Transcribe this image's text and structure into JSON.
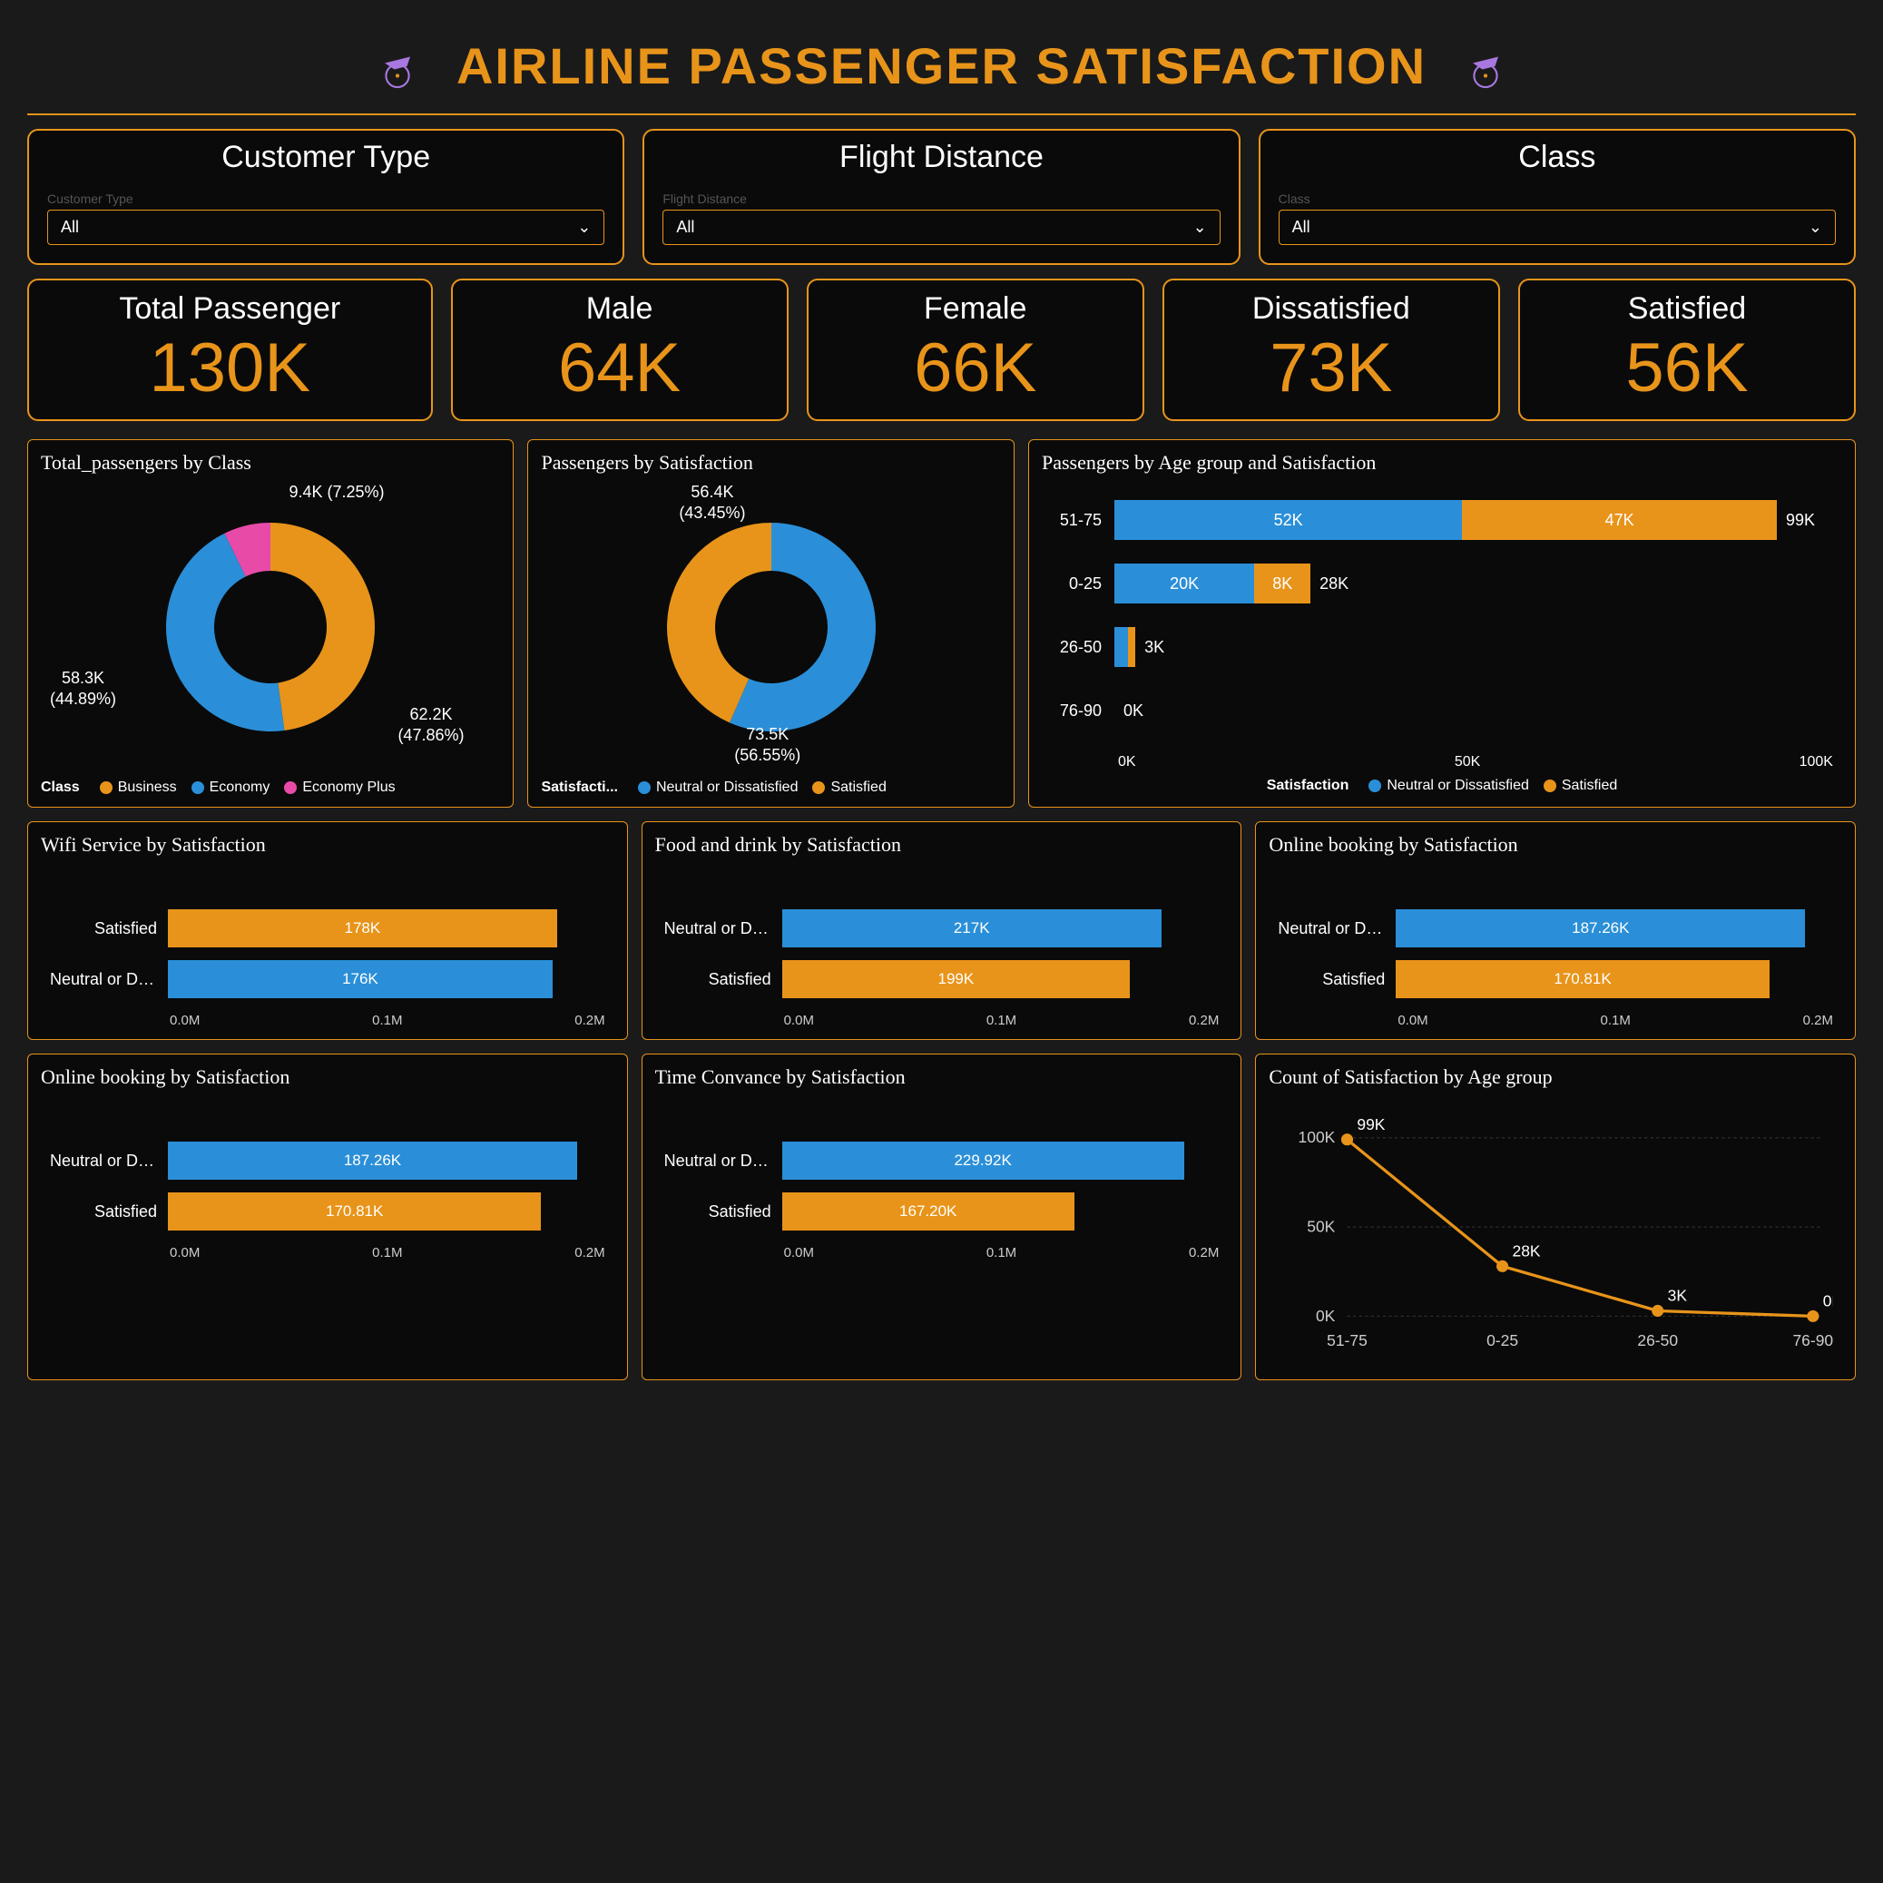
{
  "colors": {
    "accent": "#e8941a",
    "blue": "#2a8fd8",
    "orange": "#e8941a",
    "pink": "#e84aa8",
    "bg": "#0a0a0a",
    "text": "#ffffff",
    "grid": "#444444"
  },
  "header": {
    "title": "AIRLINE PASSENGER SATISFACTION"
  },
  "filters": [
    {
      "title": "Customer Type",
      "sublabel": "Customer Type",
      "value": "All"
    },
    {
      "title": "Flight Distance",
      "sublabel": "Flight Distance",
      "value": "All"
    },
    {
      "title": "Class",
      "sublabel": "Class",
      "value": "All"
    }
  ],
  "kpis": [
    {
      "label": "Total Passenger",
      "value": "130K"
    },
    {
      "label": "Male",
      "value": "64K"
    },
    {
      "label": "Female",
      "value": "66K"
    },
    {
      "label": "Dissatisfied",
      "value": "73K"
    },
    {
      "label": "Satisfied",
      "value": "56K"
    }
  ],
  "donut_class": {
    "title": "Total_passengers by Class",
    "slices": [
      {
        "name": "Business",
        "value": 62.2,
        "pct": 47.86,
        "color": "#e8941a",
        "label": "62.2K\n(47.86%)"
      },
      {
        "name": "Economy",
        "value": 58.3,
        "pct": 44.89,
        "color": "#2a8fd8",
        "label": "58.3K\n(44.89%)"
      },
      {
        "name": "Economy Plus",
        "value": 9.4,
        "pct": 7.25,
        "color": "#e84aa8",
        "label": "9.4K (7.25%)"
      }
    ],
    "legend_title": "Class",
    "legend": [
      "Business",
      "Economy",
      "Economy Plus"
    ]
  },
  "donut_sat": {
    "title": "Passengers by Satisfaction",
    "slices": [
      {
        "name": "Neutral or Dissatisfied",
        "value": 73.5,
        "pct": 56.55,
        "color": "#2a8fd8",
        "label": "73.5K\n(56.55%)"
      },
      {
        "name": "Satisfied",
        "value": 56.4,
        "pct": 43.45,
        "color": "#e8941a",
        "label": "56.4K\n(43.45%)"
      }
    ],
    "legend_title": "Satisfacti...",
    "legend": [
      "Neutral or Dissatisfied",
      "Satisfied"
    ]
  },
  "stacked": {
    "title": "Passengers by Age group and Satisfaction",
    "max": 100,
    "rows": [
      {
        "label": "51-75",
        "a": 52,
        "a_label": "52K",
        "b": 47,
        "b_label": "47K",
        "total": "99K"
      },
      {
        "label": "0-25",
        "a": 20,
        "a_label": "20K",
        "b": 8,
        "b_label": "8K",
        "total": "28K"
      },
      {
        "label": "26-50",
        "a": 2,
        "a_label": "",
        "b": 1,
        "b_label": "",
        "total": "3K"
      },
      {
        "label": "76-90",
        "a": 0,
        "a_label": "",
        "b": 0,
        "b_label": "",
        "total": "0K"
      }
    ],
    "axis": [
      "0K",
      "50K",
      "100K"
    ],
    "legend_title": "Satisfaction",
    "legend": [
      "Neutral or Dissatisfied",
      "Satisfied"
    ]
  },
  "bar_charts_row2": [
    {
      "title": "Wifi Service by Satisfaction",
      "max": 200,
      "bars": [
        {
          "label": "Satisfied",
          "value": 178,
          "text": "178K",
          "color": "#e8941a"
        },
        {
          "label": "Neutral or Dis...",
          "value": 176,
          "text": "176K",
          "color": "#2a8fd8"
        }
      ],
      "axis": [
        "0.0M",
        "0.1M",
        "0.2M"
      ]
    },
    {
      "title": "Food and drink by Satisfaction",
      "max": 250,
      "bars": [
        {
          "label": "Neutral or Dis...",
          "value": 217,
          "text": "217K",
          "color": "#2a8fd8"
        },
        {
          "label": "Satisfied",
          "value": 199,
          "text": "199K",
          "color": "#e8941a"
        }
      ],
      "axis": [
        "0.0M",
        "0.1M",
        "0.2M"
      ]
    },
    {
      "title": "Online booking by Satisfaction",
      "max": 200,
      "bars": [
        {
          "label": "Neutral or Dis...",
          "value": 187.26,
          "text": "187.26K",
          "color": "#2a8fd8"
        },
        {
          "label": "Satisfied",
          "value": 170.81,
          "text": "170.81K",
          "color": "#e8941a"
        }
      ],
      "axis": [
        "0.0M",
        "0.1M",
        "0.2M"
      ]
    }
  ],
  "bar_charts_row3": [
    {
      "title": "Online booking by Satisfaction",
      "max": 200,
      "bars": [
        {
          "label": "Neutral or Dis...",
          "value": 187.26,
          "text": "187.26K",
          "color": "#2a8fd8"
        },
        {
          "label": "Satisfied",
          "value": 170.81,
          "text": "170.81K",
          "color": "#e8941a"
        }
      ],
      "axis": [
        "0.0M",
        "0.1M",
        "0.2M"
      ]
    },
    {
      "title": "Time Convance by Satisfaction",
      "max": 250,
      "bars": [
        {
          "label": "Neutral or Dis...",
          "value": 229.92,
          "text": "229.92K",
          "color": "#2a8fd8"
        },
        {
          "label": "Satisfied",
          "value": 167.2,
          "text": "167.20K",
          "color": "#e8941a"
        }
      ],
      "axis": [
        "0.0M",
        "0.1M",
        "0.2M"
      ]
    }
  ],
  "line_chart": {
    "title": "Count of Satisfaction by Age group",
    "yticks": [
      "100K",
      "50K",
      "0K"
    ],
    "points": [
      {
        "x": "51-75",
        "y": 99,
        "label": "99K"
      },
      {
        "x": "0-25",
        "y": 28,
        "label": "28K"
      },
      {
        "x": "26-50",
        "y": 3,
        "label": "3K"
      },
      {
        "x": "76-90",
        "y": 0,
        "label": "0K"
      }
    ],
    "ymax": 100,
    "color": "#e8941a"
  }
}
